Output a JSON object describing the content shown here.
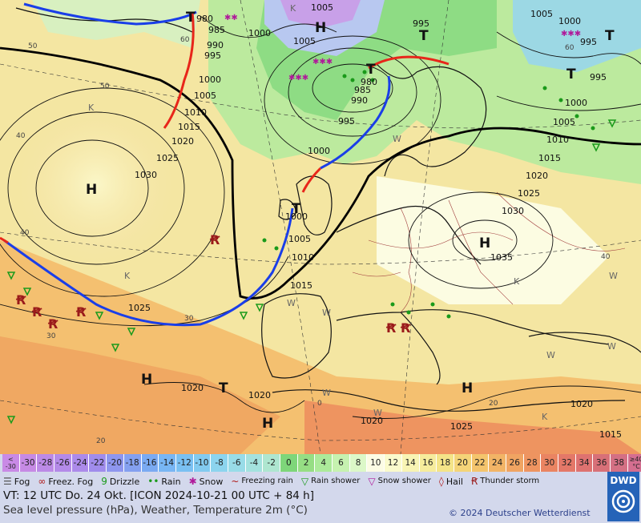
{
  "map": {
    "pressure_labels": [
      {
        "t": "980"
      },
      {
        "t": "985"
      },
      {
        "t": "990"
      },
      {
        "t": "995"
      },
      {
        "t": "1000"
      },
      {
        "t": "1005"
      },
      {
        "t": "1010"
      },
      {
        "t": "1015"
      },
      {
        "t": "1020"
      },
      {
        "t": "1025"
      },
      {
        "t": "1030"
      },
      {
        "t": "1000"
      },
      {
        "t": "1005"
      },
      {
        "t": "1000"
      },
      {
        "t": "1005"
      },
      {
        "t": "995"
      },
      {
        "t": "980"
      },
      {
        "t": "985"
      },
      {
        "t": "990"
      },
      {
        "t": "995"
      },
      {
        "t": "1000"
      },
      {
        "t": "1000"
      },
      {
        "t": "1005"
      },
      {
        "t": "1010"
      },
      {
        "t": "1015"
      },
      {
        "t": "1025"
      },
      {
        "t": "1020"
      },
      {
        "t": "1020"
      },
      {
        "t": "1020"
      },
      {
        "t": "1005"
      },
      {
        "t": "1000"
      },
      {
        "t": "995"
      },
      {
        "t": "995"
      },
      {
        "t": "1000"
      },
      {
        "t": "1005"
      },
      {
        "t": "1010"
      },
      {
        "t": "1015"
      },
      {
        "t": "1020"
      },
      {
        "t": "1025"
      },
      {
        "t": "1030"
      },
      {
        "t": "1035"
      },
      {
        "t": "1025"
      },
      {
        "t": "1020"
      },
      {
        "t": "1015"
      }
    ],
    "pressure_centers": [
      {
        "t": "H"
      },
      {
        "t": "H"
      },
      {
        "t": "H"
      },
      {
        "t": "H"
      },
      {
        "t": "H"
      },
      {
        "t": "H"
      },
      {
        "t": "T"
      },
      {
        "t": "T"
      },
      {
        "t": "T"
      },
      {
        "t": "T"
      },
      {
        "t": "T"
      },
      {
        "t": "T"
      },
      {
        "t": "T"
      }
    ],
    "temp_isoline_labels": [
      {
        "t": "60"
      },
      {
        "t": "50"
      },
      {
        "t": "40"
      },
      {
        "t": "40"
      },
      {
        "t": "30"
      },
      {
        "t": "20"
      },
      {
        "t": "40"
      },
      {
        "t": "50"
      },
      {
        "t": "60"
      },
      {
        "t": "30"
      },
      {
        "t": "20"
      },
      {
        "t": "0"
      }
    ],
    "small_markers": [
      {
        "t": "K"
      },
      {
        "t": "K"
      },
      {
        "t": "K"
      },
      {
        "t": "K"
      },
      {
        "t": "K"
      },
      {
        "t": "W"
      },
      {
        "t": "W"
      },
      {
        "t": "W"
      },
      {
        "t": "W"
      },
      {
        "t": "W"
      },
      {
        "t": "W"
      },
      {
        "t": "W"
      },
      {
        "t": "W"
      }
    ],
    "colors": {
      "cold_front": "#1a3ee8",
      "warm_front": "#e8261a",
      "isobar": "#111111",
      "rain_symbol": "#1a9a1a",
      "snow_symbol": "#b01a9a",
      "thunder_symbol": "#9a1a1a"
    }
  },
  "scale": {
    "cells": [
      {
        "label": "< -30",
        "color": "#c98ae6"
      },
      {
        "label": "-30",
        "color": "#c68ae4"
      },
      {
        "label": "-28",
        "color": "#bc8ae6"
      },
      {
        "label": "-26",
        "color": "#b48ae8"
      },
      {
        "label": "-24",
        "color": "#ac8aea"
      },
      {
        "label": "-22",
        "color": "#a08cec"
      },
      {
        "label": "-20",
        "color": "#8e96ee"
      },
      {
        "label": "-18",
        "color": "#84a0f0"
      },
      {
        "label": "-16",
        "color": "#7aaaf2"
      },
      {
        "label": "-14",
        "color": "#78b6f4"
      },
      {
        "label": "-12",
        "color": "#7ac0f2"
      },
      {
        "label": "-10",
        "color": "#82caf0"
      },
      {
        "label": "-8",
        "color": "#8cd4ee"
      },
      {
        "label": "-6",
        "color": "#98dce8"
      },
      {
        "label": "-4",
        "color": "#a4e2de"
      },
      {
        "label": "-2",
        "color": "#aee6d0"
      },
      {
        "label": "0",
        "color": "#7ed67a"
      },
      {
        "label": "2",
        "color": "#96de84"
      },
      {
        "label": "4",
        "color": "#acea9a"
      },
      {
        "label": "6",
        "color": "#c6f2b0"
      },
      {
        "label": "8",
        "color": "#dcf8c8"
      },
      {
        "label": "10",
        "color": "#fcfce4"
      },
      {
        "label": "12",
        "color": "#fafacc"
      },
      {
        "label": "14",
        "color": "#f8f4b4"
      },
      {
        "label": "16",
        "color": "#f6ec9c"
      },
      {
        "label": "18",
        "color": "#f4e488"
      },
      {
        "label": "20",
        "color": "#f4d478"
      },
      {
        "label": "22",
        "color": "#f4c46c"
      },
      {
        "label": "24",
        "color": "#f2b466"
      },
      {
        "label": "26",
        "color": "#f0a462"
      },
      {
        "label": "28",
        "color": "#ee9460"
      },
      {
        "label": "30",
        "color": "#ea8462"
      },
      {
        "label": "32",
        "color": "#e47868"
      },
      {
        "label": "34",
        "color": "#de7270"
      },
      {
        "label": "36",
        "color": "#d87078"
      },
      {
        "label": "38",
        "color": "#d47084"
      },
      {
        "label": "≥40 °C",
        "color": "#d46e90"
      }
    ]
  },
  "legend": {
    "items": [
      {
        "sym": "☰",
        "label": "Fog",
        "color": "#555555"
      },
      {
        "sym": "∞",
        "label": "Freez. Fog",
        "color": "#b01a1a"
      },
      {
        "sym": "9",
        "label": "Drizzle",
        "color": "#1a9a1a"
      },
      {
        "sym": "••",
        "label": "Rain",
        "color": "#1a9a1a"
      },
      {
        "sym": "✱",
        "label": "Snow",
        "color": "#b01a9a"
      },
      {
        "sym": "~",
        "label": "Freezing rain",
        "color": "#b01a1a"
      },
      {
        "sym": "▽",
        "label": "Rain shower",
        "color": "#1a9a1a"
      },
      {
        "sym": "▽",
        "label": "Snow shower",
        "color": "#b01a9a"
      },
      {
        "sym": "◊",
        "label": "Hail",
        "color": "#b01a1a"
      },
      {
        "sym": "Ꞧ",
        "label": "Thunder storm",
        "color": "#9a1a1a"
      }
    ]
  },
  "info": {
    "valid_time": "VT: 12 UTC Do.  24 Okt. [ICON 2024-10-21  00 UTC + 84 h]",
    "parameters": "Sea level pressure (hPa), Weather, Temperature 2m (°C)",
    "copyright": "© 2024 Deutscher Wetterdienst",
    "logo_text": "DWD"
  }
}
